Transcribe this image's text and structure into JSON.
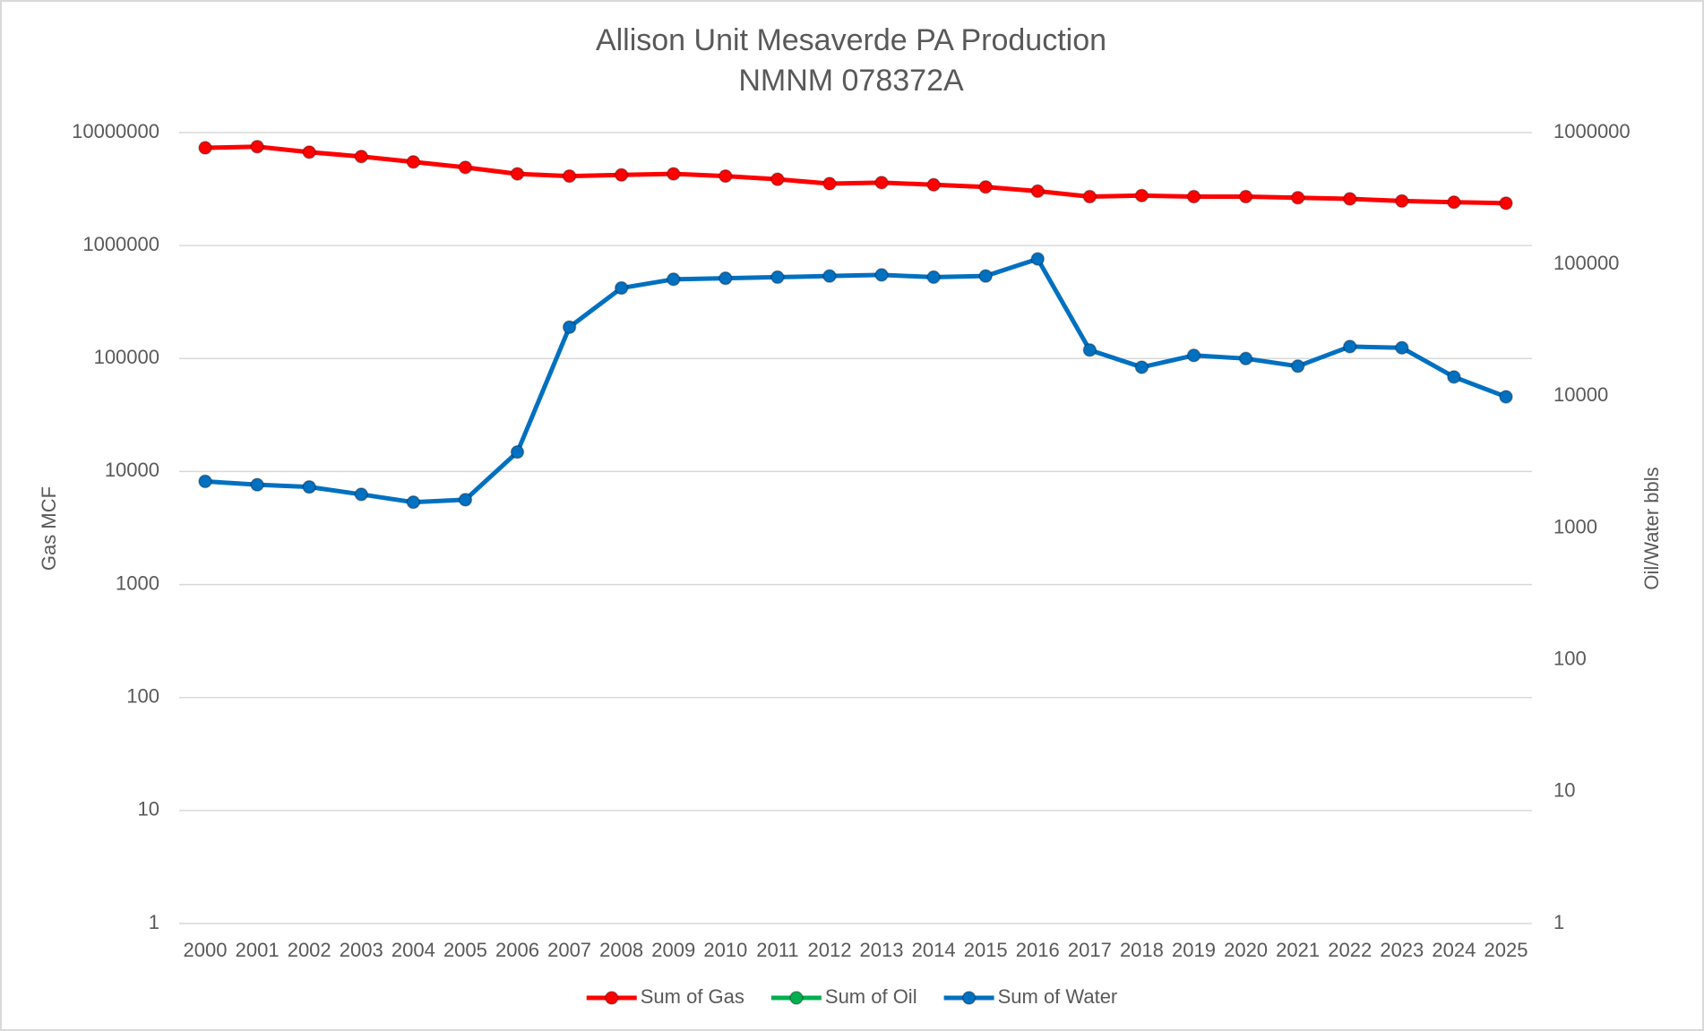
{
  "chart_data": {
    "type": "line",
    "title": "Allison Unit Mesaverde PA Production",
    "subtitle": "NMNM 078372A",
    "y_label": "Gas MCF",
    "y2_label": "Oil/Water bbls",
    "categories": [
      "2000",
      "2001",
      "2002",
      "2003",
      "2004",
      "2005",
      "2006",
      "2007",
      "2008",
      "2009",
      "2010",
      "2011",
      "2012",
      "2013",
      "2014",
      "2015",
      "2016",
      "2017",
      "2018",
      "2019",
      "2020",
      "2021",
      "2022",
      "2023",
      "2024",
      "2025"
    ],
    "series": [
      {
        "name": "Sum of Gas",
        "color": "#ff0000",
        "axis": "y",
        "values": [
          7330000,
          7500000,
          6710000,
          6140000,
          5500000,
          4920000,
          4310000,
          4120000,
          4220000,
          4310000,
          4120000,
          3860000,
          3530000,
          3610000,
          3450000,
          3300000,
          3030000,
          2710000,
          2770000,
          2710000,
          2710000,
          2650000,
          2590000,
          2480000,
          2420000,
          2370000
        ]
      },
      {
        "name": "Sum of Oil",
        "color": "#00b050",
        "axis": "y2",
        "values": [
          null,
          null,
          null,
          null,
          null,
          null,
          null,
          null,
          null,
          null,
          null,
          null,
          null,
          null,
          null,
          null,
          null,
          null,
          null,
          null,
          null,
          null,
          null,
          null,
          null,
          null
        ]
      },
      {
        "name": "Sum of Water",
        "color": "#0070c0",
        "axis": "y2",
        "values": [
          2260,
          2130,
          2050,
          1800,
          1570,
          1640,
          3770,
          33400,
          66200,
          77100,
          78500,
          80000,
          81600,
          83200,
          80000,
          81600,
          110000,
          22400,
          16600,
          20400,
          19300,
          16900,
          23800,
          23300,
          14000,
          9900
        ]
      }
    ],
    "ylim": [
      1,
      10000000
    ],
    "yticks": [
      1,
      10,
      100,
      1000,
      10000,
      100000,
      1000000,
      10000000
    ],
    "y2lim": [
      1,
      1000000
    ],
    "y2ticks": [
      1,
      10,
      100,
      1000,
      10000,
      100000,
      1000000
    ],
    "log_scale": true,
    "grid": true,
    "legend": "bottom"
  }
}
